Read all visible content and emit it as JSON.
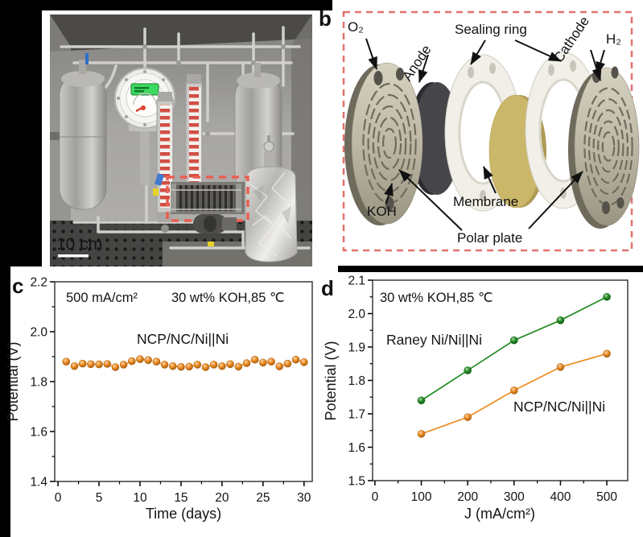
{
  "figure": {
    "description": "Four-panel electrolyzer figure: equipment photo, exploded cell schematic, stability test chart, polarization chart"
  },
  "panel_a": {
    "scale_bar": "10 cm"
  },
  "panel_b": {
    "label": "b",
    "labels": {
      "o2": "O₂",
      "anode": "Anode",
      "sealing_ring": "Sealing ring",
      "cathode": "Cathode",
      "h2": "H₂",
      "koh": "KOH",
      "membrane": "Membrane",
      "polar_plate": "Polar plate"
    },
    "border_color": "#E0736D"
  },
  "panel_c": {
    "label": "c"
  },
  "panel_d": {
    "label": "d"
  },
  "colors": {
    "orange": "#EF8B1F",
    "green": "#228B22",
    "photo_box_red": "#EA5F51"
  },
  "chart_data": [
    {
      "type": "scatter",
      "panel": "c",
      "xlabel": "Time (days)",
      "ylabel": "Potential (V)",
      "xlim": [
        -0.4,
        31
      ],
      "ylim": [
        1.4,
        2.2
      ],
      "xticks": [
        0,
        5,
        10,
        15,
        20,
        25,
        30
      ],
      "yticks": [
        1.4,
        1.6,
        1.8,
        2.0,
        2.2
      ],
      "ytick_decimals": 1,
      "grid": false,
      "annotations": [
        "500 mA/cm²",
        "30 wt% KOH,85 ℃"
      ],
      "series": [
        {
          "name": "NCP/NC/Ni||Ni",
          "color": "#EF8B1F",
          "line": "dashed",
          "x": [
            1,
            2,
            3,
            4,
            5,
            6,
            7,
            8,
            9,
            10,
            11,
            12,
            13,
            14,
            15,
            16,
            17,
            18,
            19,
            20,
            21,
            22,
            23,
            24,
            25,
            26,
            27,
            28,
            29,
            30
          ],
          "y": [
            1.88,
            1.862,
            1.872,
            1.87,
            1.869,
            1.871,
            1.858,
            1.868,
            1.882,
            1.89,
            1.886,
            1.88,
            1.868,
            1.862,
            1.859,
            1.86,
            1.868,
            1.858,
            1.868,
            1.862,
            1.87,
            1.86,
            1.874,
            1.888,
            1.876,
            1.88,
            1.861,
            1.872,
            1.888,
            1.878
          ]
        }
      ]
    },
    {
      "type": "line",
      "panel": "d",
      "xlabel": "J (mA/cm²)",
      "ylabel": "Potential (V)",
      "xlim": [
        -5,
        545
      ],
      "ylim": [
        1.5,
        2.1
      ],
      "xticks": [
        0,
        100,
        200,
        300,
        400,
        500
      ],
      "yticks": [
        1.5,
        1.6,
        1.7,
        1.8,
        1.9,
        2.0,
        2.1
      ],
      "ytick_decimals": 1,
      "grid": false,
      "annotations": [
        "30 wt% KOH,85 ℃"
      ],
      "series": [
        {
          "name": "Raney Ni/Ni||Ni",
          "color": "#228B22",
          "line": "solid",
          "x": [
            100,
            200,
            300,
            400,
            500
          ],
          "y": [
            1.74,
            1.83,
            1.92,
            1.98,
            2.05
          ]
        },
        {
          "name": "NCP/NC/Ni||Ni",
          "color": "#EF8B1F",
          "line": "solid",
          "x": [
            100,
            200,
            300,
            400,
            500
          ],
          "y": [
            1.64,
            1.69,
            1.77,
            1.84,
            1.88
          ]
        }
      ]
    }
  ]
}
